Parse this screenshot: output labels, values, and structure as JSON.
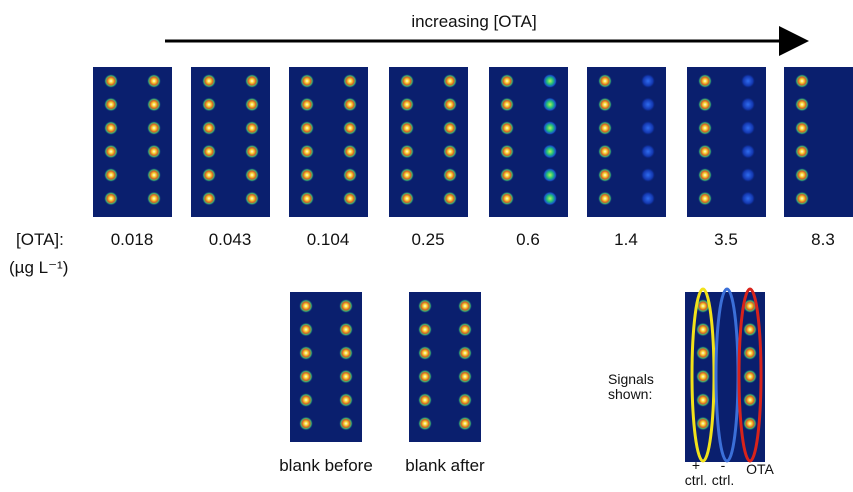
{
  "arrow_label": "increasing [OTA]",
  "concentration_row": {
    "label": "[OTA]:",
    "unit": "(µg L⁻¹)",
    "values": [
      "0.018",
      "0.043",
      "0.104",
      "0.25",
      "0.6",
      "1.4",
      "3.5",
      "8.3"
    ]
  },
  "blanks": [
    "blank before",
    "blank after"
  ],
  "legend": {
    "title": "Signals shown:",
    "labels": [
      "+ ctrl.",
      "- ctrl.",
      "OTA"
    ]
  }
}
